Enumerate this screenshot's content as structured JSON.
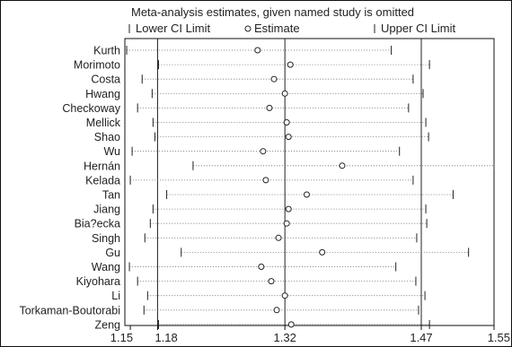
{
  "chart_data": {
    "type": "scatter",
    "title": "Meta-analysis estimates, given named study is omitted",
    "legend": [
      {
        "key": "lower",
        "label": "Lower CI Limit",
        "marker": "tick"
      },
      {
        "key": "estimate",
        "label": "Estimate",
        "marker": "circle"
      },
      {
        "key": "upper",
        "label": "Upper CI Limit",
        "marker": "tick"
      }
    ],
    "xlim": [
      1.144,
      1.55
    ],
    "xticks": [
      1.15,
      1.18,
      1.32,
      1.47,
      1.55
    ],
    "xtick_labels": [
      "1.15",
      "1.18",
      "1.32",
      "1.47",
      "1.55"
    ],
    "reference_lines": [
      1.18,
      1.32,
      1.47
    ],
    "studies": [
      {
        "name": "Kurth",
        "lower": 1.146,
        "estimate": 1.29,
        "upper": 1.437
      },
      {
        "name": "Morimoto",
        "lower": 1.181,
        "estimate": 1.326,
        "upper": 1.479
      },
      {
        "name": "Costa",
        "lower": 1.163,
        "estimate": 1.308,
        "upper": 1.461
      },
      {
        "name": "Hwang",
        "lower": 1.174,
        "estimate": 1.32,
        "upper": 1.472
      },
      {
        "name": "Checkoway",
        "lower": 1.158,
        "estimate": 1.303,
        "upper": 1.456
      },
      {
        "name": "Mellick",
        "lower": 1.175,
        "estimate": 1.322,
        "upper": 1.475
      },
      {
        "name": "Shao",
        "lower": 1.177,
        "estimate": 1.324,
        "upper": 1.478
      },
      {
        "name": "Wu",
        "lower": 1.152,
        "estimate": 1.296,
        "upper": 1.446
      },
      {
        "name": "Hernán",
        "lower": 1.219,
        "estimate": 1.383,
        "upper": 1.55
      },
      {
        "name": "Kelada",
        "lower": 1.15,
        "estimate": 1.299,
        "upper": 1.461
      },
      {
        "name": "Tan",
        "lower": 1.19,
        "estimate": 1.344,
        "upper": 1.505
      },
      {
        "name": "Jiang",
        "lower": 1.175,
        "estimate": 1.324,
        "upper": 1.475
      },
      {
        "name": "Bia?ecka",
        "lower": 1.172,
        "estimate": 1.322,
        "upper": 1.476
      },
      {
        "name": "Singh",
        "lower": 1.166,
        "estimate": 1.313,
        "upper": 1.465
      },
      {
        "name": "Gu",
        "lower": 1.206,
        "estimate": 1.361,
        "upper": 1.522
      },
      {
        "name": "Wang",
        "lower": 1.149,
        "estimate": 1.294,
        "upper": 1.442
      },
      {
        "name": "Kiyohara",
        "lower": 1.158,
        "estimate": 1.305,
        "upper": 1.464
      },
      {
        "name": "Li",
        "lower": 1.169,
        "estimate": 1.32,
        "upper": 1.474
      },
      {
        "name": "Torkaman-Boutorabi",
        "lower": 1.165,
        "estimate": 1.311,
        "upper": 1.467
      },
      {
        "name": "Zeng",
        "lower": 1.181,
        "estimate": 1.327,
        "upper": 1.479
      }
    ]
  }
}
